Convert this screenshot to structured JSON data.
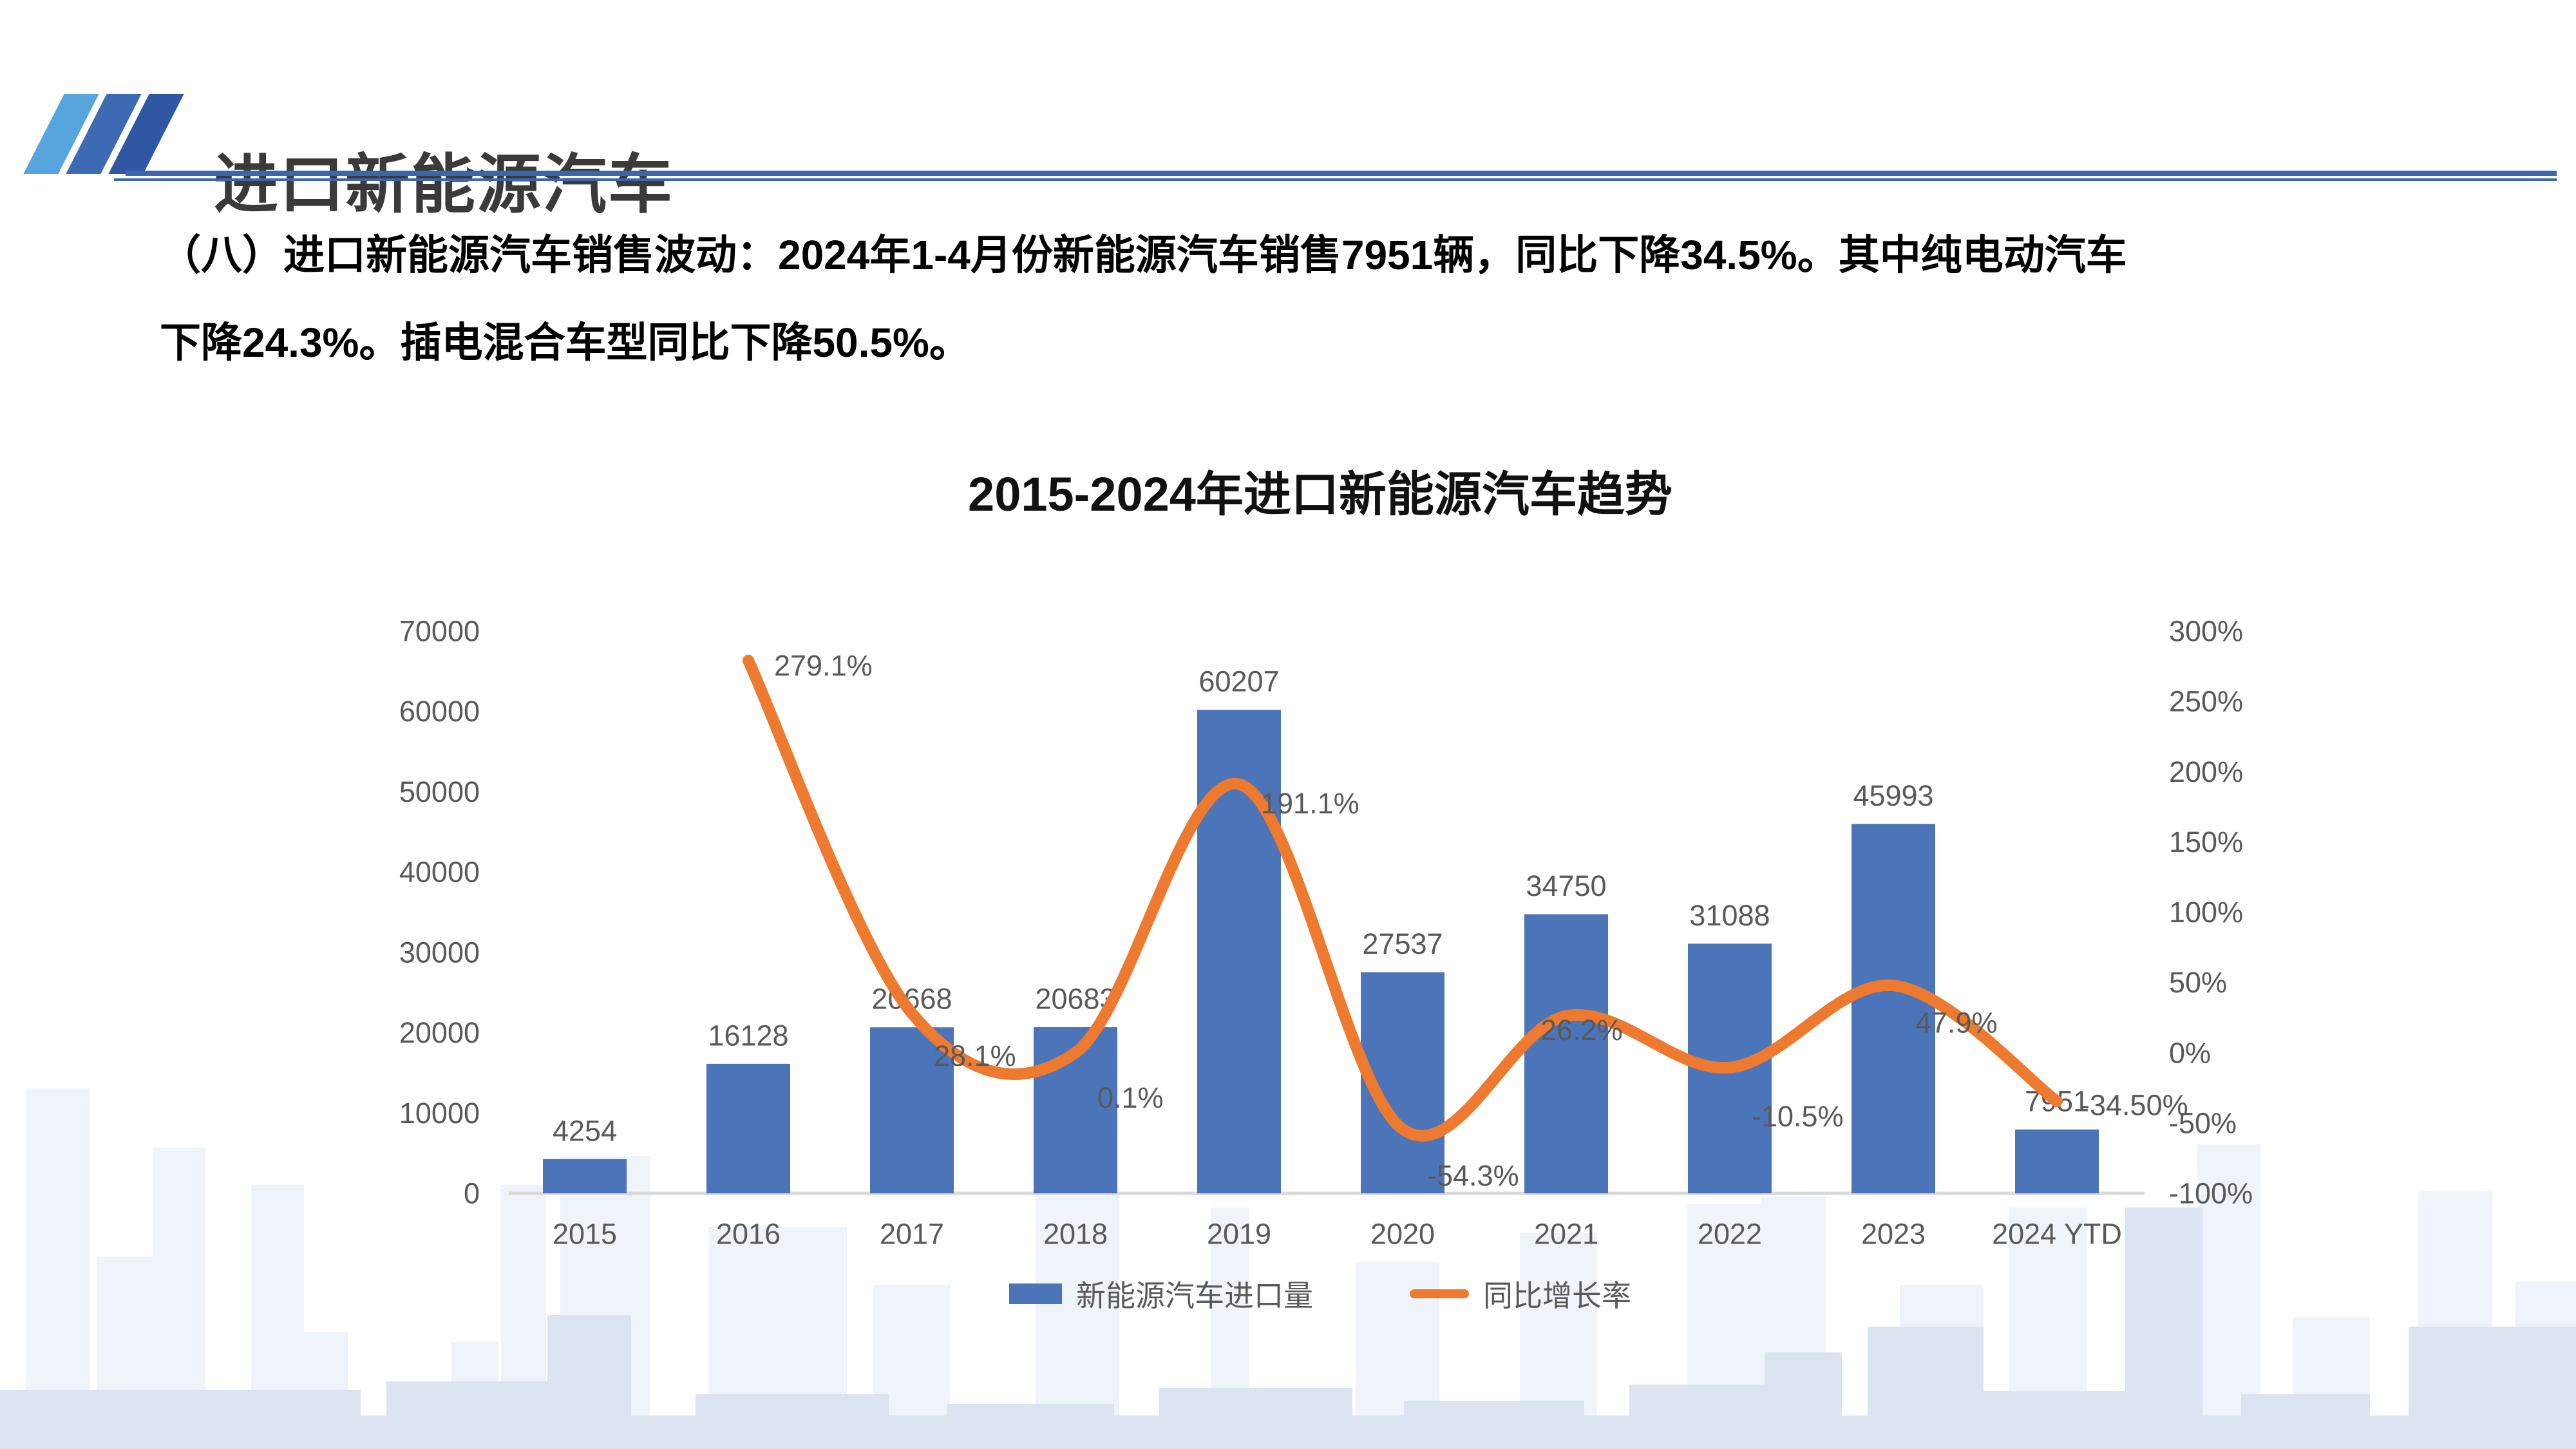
{
  "slide": {
    "header": {
      "title": "进口新能源汽车"
    },
    "paragraph": {
      "line1": "（八）进口新能源汽车销售波动：2024年1-4月份新能源汽车销售7951辆，同比下降34.5%。其中纯电动汽车",
      "line2": "下降24.3%。插电混合车型同比下降50.5%。"
    }
  },
  "chart_data": {
    "type": "bar",
    "combo": "bar+line",
    "title": "2015-2024年进口新能源汽车趋势",
    "categories": [
      "2015",
      "2016",
      "2017",
      "2018",
      "2019",
      "2020",
      "2021",
      "2022",
      "2023",
      "2024 YTD"
    ],
    "series": [
      {
        "name": "新能源汽车进口量",
        "type": "bar",
        "color": "#4C74B9",
        "values": [
          4254,
          16128,
          20668,
          20683,
          60207,
          27537,
          34750,
          31088,
          45993,
          7951
        ],
        "labels": [
          "4254",
          "16128",
          "20668",
          "20683",
          "60207",
          "27537",
          "34750",
          "31088",
          "45993",
          "7951"
        ]
      },
      {
        "name": "同比增长率",
        "type": "line",
        "color": "#ED7A2F",
        "values": [
          null,
          279.1,
          28.1,
          0.1,
          191.1,
          -54.3,
          26.2,
          -10.5,
          47.9,
          -34.5
        ],
        "labels": [
          null,
          "279.1%",
          "28.1%",
          "0.1%",
          "191.1%",
          "-54.3%",
          "26.2%",
          "-10.5%",
          "47.9%",
          "-34.50%"
        ]
      }
    ],
    "left_axis": {
      "min": 0,
      "max": 70000,
      "step": 10000,
      "ticks": [
        "0",
        "10000",
        "20000",
        "30000",
        "40000",
        "50000",
        "60000",
        "70000"
      ]
    },
    "right_axis": {
      "min": -100,
      "max": 300,
      "step": 50,
      "ticks": [
        "-100%",
        "-50%",
        "0%",
        "50%",
        "100%",
        "150%",
        "200%",
        "250%",
        "300%"
      ]
    },
    "legend": {
      "position": "bottom",
      "entries": [
        "新能源汽车进口量",
        "同比增长率"
      ]
    },
    "grid": false,
    "colors": {
      "bar": "#4C74B9",
      "line": "#ED7A2F",
      "axis_text": "#595959",
      "baseline": "#D9D9D9"
    }
  }
}
